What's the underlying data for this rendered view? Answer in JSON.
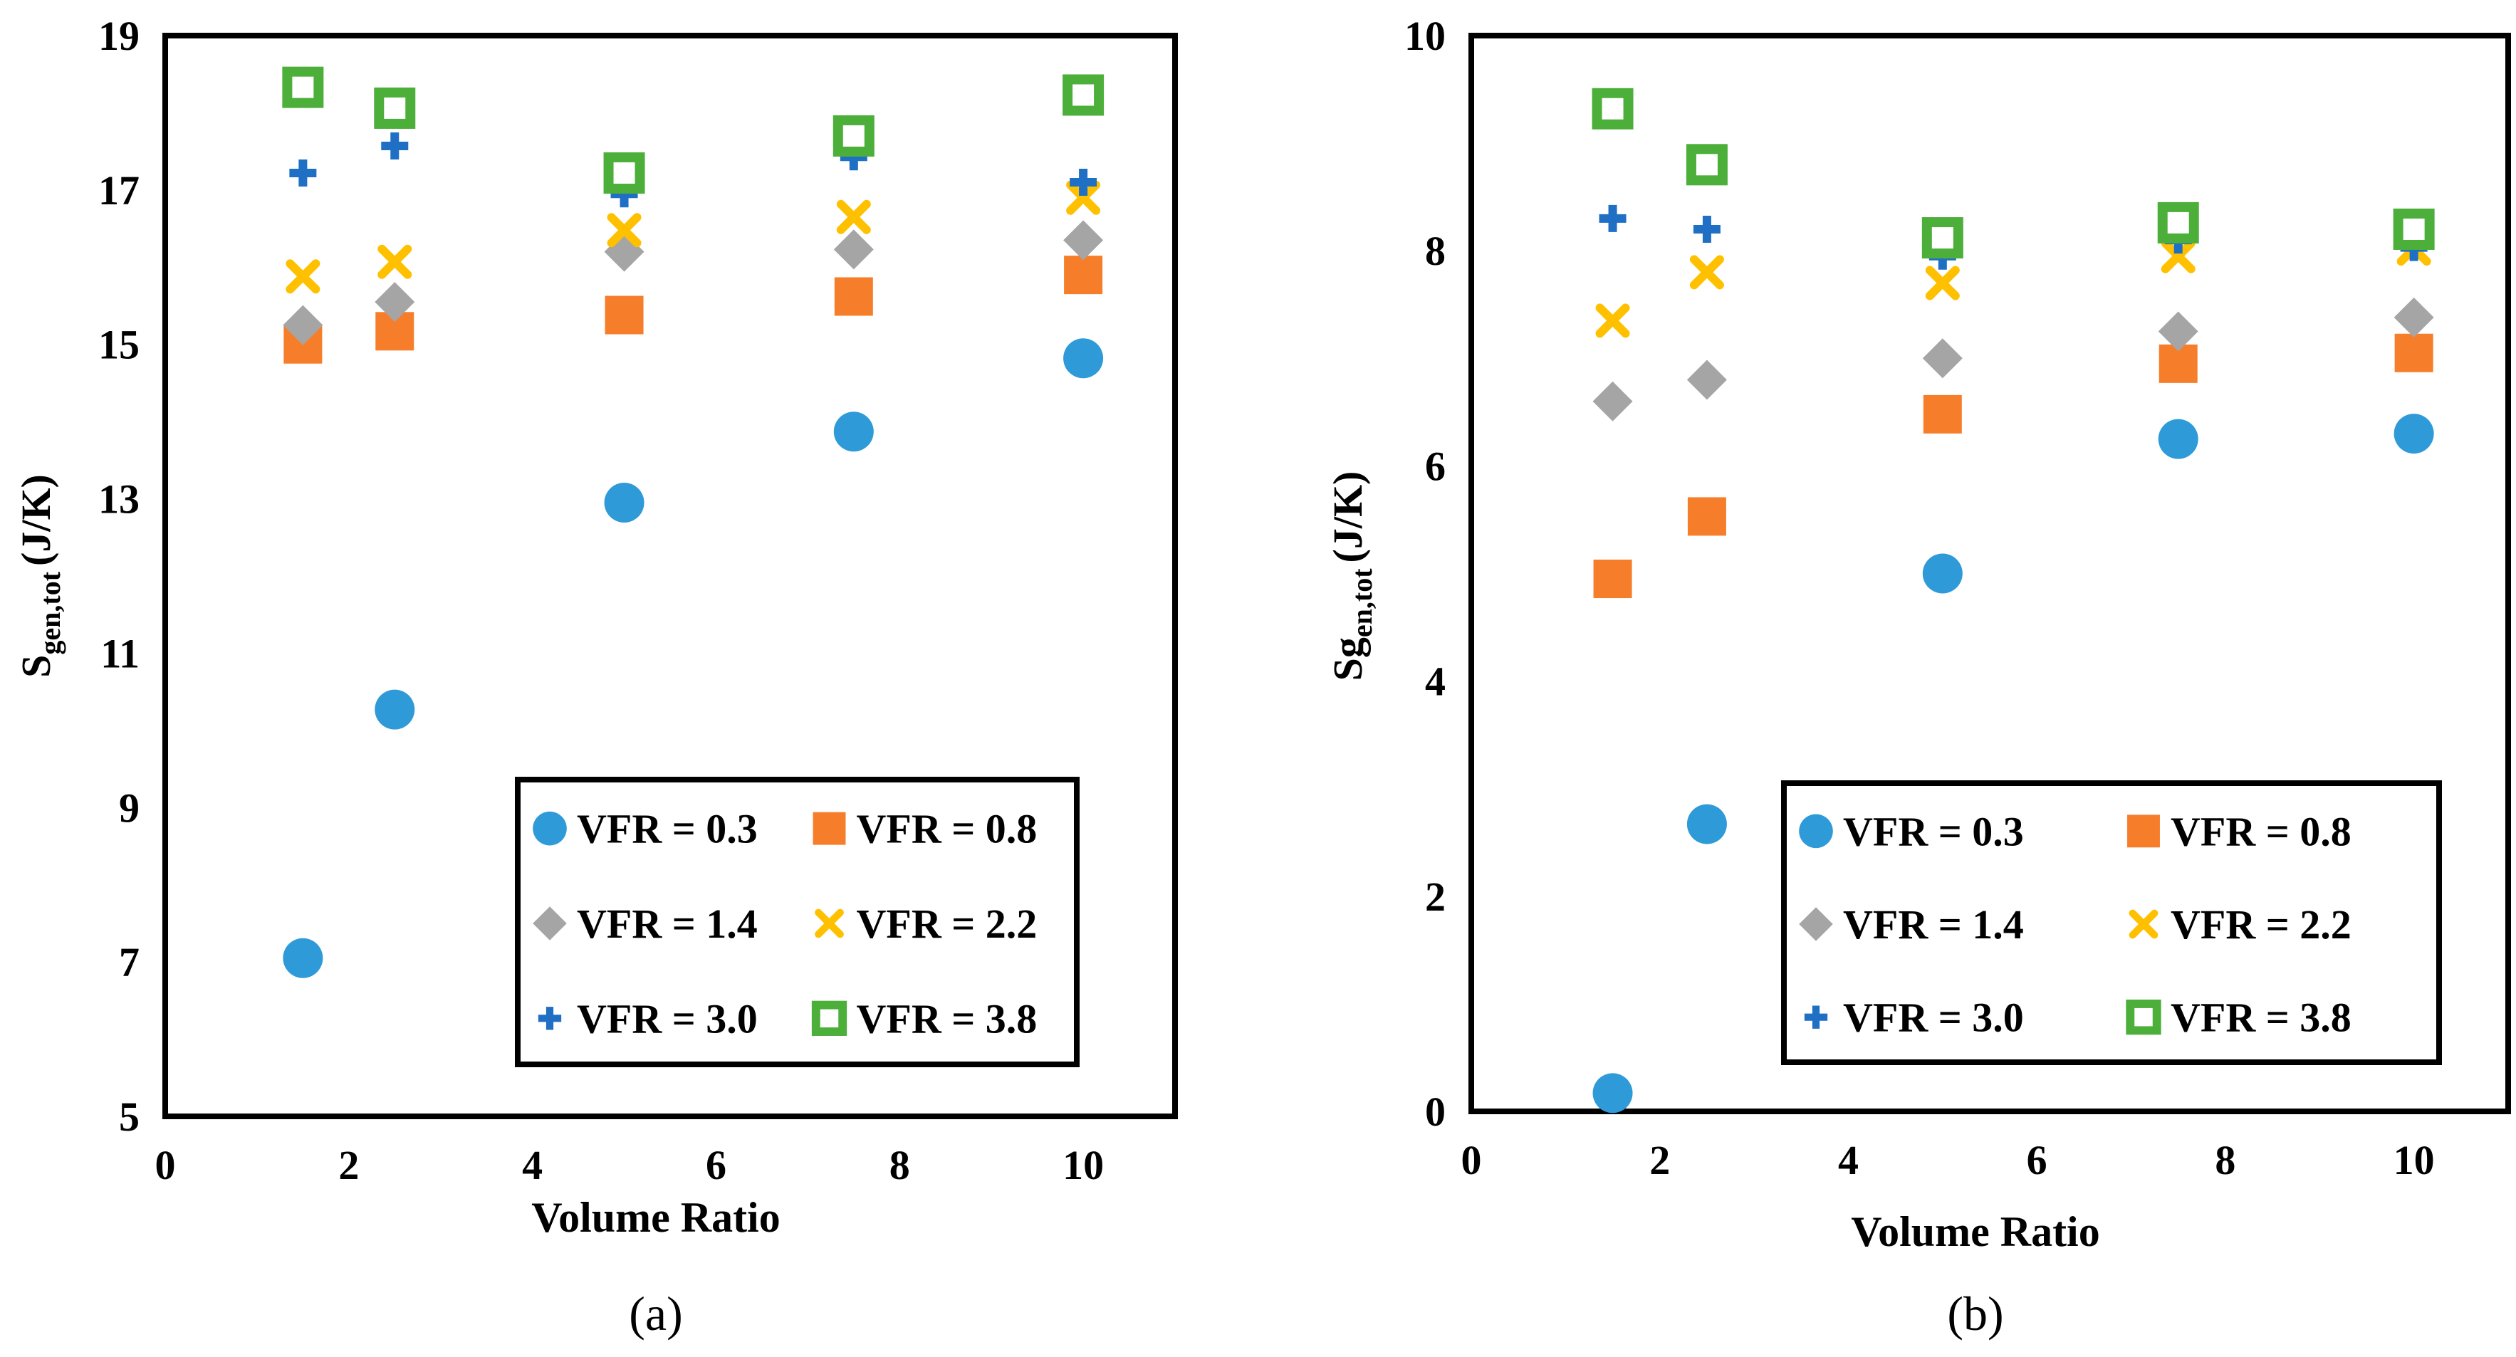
{
  "chart_data": [
    {
      "type": "scatter",
      "panel": "a",
      "panel_label": "(a)",
      "xlabel": "Volume Ratio",
      "ylabel_main": "S",
      "ylabel_sub": "gen,tot",
      "ylabel_unit": "(J/K)",
      "xlim": [
        0,
        11
      ],
      "ylim": [
        5,
        19
      ],
      "xticks": [
        "0",
        "2",
        "4",
        "6",
        "8",
        "10"
      ],
      "yticks": [
        "5",
        "7",
        "9",
        "11",
        "13",
        "15",
        "17",
        "19"
      ],
      "legend_position": "bottom-right",
      "series": [
        {
          "name": "VFR = 0.3",
          "marker": "circle",
          "color": "#2e9ad8",
          "x": [
            1.5,
            2.5,
            5,
            7.5,
            10
          ],
          "y": [
            7.05,
            10.27,
            12.95,
            13.87,
            14.82
          ]
        },
        {
          "name": "VFR = 0.8",
          "marker": "square",
          "color": "#f67e2b",
          "x": [
            1.5,
            2.5,
            5,
            7.5,
            10
          ],
          "y": [
            15.0,
            15.17,
            15.38,
            15.62,
            15.9
          ]
        },
        {
          "name": "VFR = 1.4",
          "marker": "diamond",
          "color": "#a5a5a5",
          "x": [
            1.5,
            2.5,
            5,
            7.5,
            10
          ],
          "y": [
            15.25,
            15.55,
            16.2,
            16.23,
            16.35
          ]
        },
        {
          "name": "VFR = 2.2",
          "marker": "x",
          "color": "#ffc000",
          "x": [
            1.5,
            2.5,
            5,
            7.5,
            10
          ],
          "y": [
            15.88,
            16.07,
            16.48,
            16.65,
            16.9
          ]
        },
        {
          "name": "VFR = 3.0",
          "marker": "plus",
          "color": "#1f6fc5",
          "x": [
            1.5,
            2.5,
            5,
            7.5,
            10
          ],
          "y": [
            17.22,
            17.57,
            16.95,
            17.43,
            17.1
          ]
        },
        {
          "name": "VFR = 3.8",
          "marker": "hollow-square",
          "color": "#4caf3a",
          "x": [
            1.5,
            2.5,
            5,
            7.5,
            10
          ],
          "y": [
            18.33,
            18.06,
            17.22,
            17.7,
            18.23
          ]
        }
      ]
    },
    {
      "type": "scatter",
      "panel": "b",
      "panel_label": "(b)",
      "xlabel": "Volume Ratio",
      "ylabel_main": "Sg",
      "ylabel_sub": "en,tot",
      "ylabel_unit": "(J/K)",
      "xlim": [
        0,
        11
      ],
      "ylim": [
        0,
        10
      ],
      "xticks": [
        "0",
        "2",
        "4",
        "6",
        "8",
        "10"
      ],
      "yticks": [
        "0",
        "2",
        "4",
        "6",
        "8",
        "10"
      ],
      "legend_position": "bottom-right",
      "series": [
        {
          "name": "VFR = 0.3",
          "marker": "circle",
          "color": "#2e9ad8",
          "x": [
            1.5,
            2.5,
            5,
            7.5,
            10
          ],
          "y": [
            0.17,
            2.67,
            5.0,
            6.25,
            6.3
          ]
        },
        {
          "name": "VFR = 0.8",
          "marker": "square",
          "color": "#f67e2b",
          "x": [
            1.5,
            2.5,
            5,
            7.5,
            10
          ],
          "y": [
            4.95,
            5.53,
            6.48,
            6.95,
            7.05
          ]
        },
        {
          "name": "VFR = 1.4",
          "marker": "diamond",
          "color": "#a5a5a5",
          "x": [
            1.5,
            2.5,
            5,
            7.5,
            10
          ],
          "y": [
            6.6,
            6.8,
            7.0,
            7.25,
            7.38
          ]
        },
        {
          "name": "VFR = 2.2",
          "marker": "x",
          "color": "#ffc000",
          "x": [
            1.5,
            2.5,
            5,
            7.5,
            10
          ],
          "y": [
            7.35,
            7.8,
            7.7,
            7.95,
            8.02
          ]
        },
        {
          "name": "VFR = 3.0",
          "marker": "plus",
          "color": "#1f6fc5",
          "x": [
            1.5,
            2.5,
            5,
            7.5,
            10
          ],
          "y": [
            8.3,
            8.2,
            7.95,
            8.1,
            8.03
          ]
        },
        {
          "name": "VFR = 3.8",
          "marker": "hollow-square",
          "color": "#4caf3a",
          "x": [
            1.5,
            2.5,
            5,
            7.5,
            10
          ],
          "y": [
            9.32,
            8.8,
            8.12,
            8.26,
            8.2
          ]
        }
      ]
    }
  ]
}
